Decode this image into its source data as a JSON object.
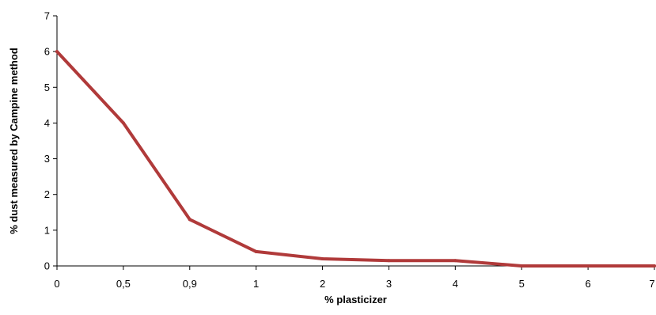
{
  "chart_data": {
    "type": "line",
    "categories": [
      "0",
      "0,5",
      "0,9",
      "1",
      "2",
      "3",
      "4",
      "5",
      "6",
      "7"
    ],
    "series": [
      {
        "values": [
          6,
          4,
          1.3,
          0.4,
          0.2,
          0.15,
          0.15,
          0,
          0,
          0
        ],
        "color": "#b03a3a"
      }
    ],
    "xlabel": "% plasticizer",
    "ylabel": "% dust measured by Campine method",
    "ylim": [
      0,
      7
    ],
    "yticks": [
      "0",
      "1",
      "2",
      "3",
      "4",
      "5",
      "6",
      "7"
    ],
    "grid": false,
    "legend": "none"
  }
}
